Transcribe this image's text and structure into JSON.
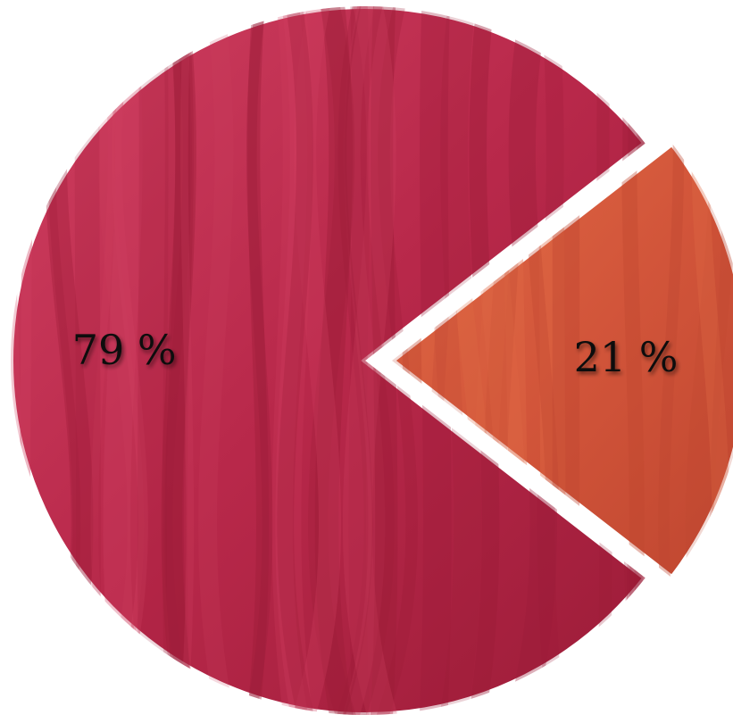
{
  "chart_data": {
    "type": "pie",
    "slices": [
      {
        "label": "79 %",
        "value": 79,
        "color": "#b8284a",
        "highlight": "#cf3f60",
        "shade": "#9c1c38",
        "exploded": false
      },
      {
        "label": "21 %",
        "value": 21,
        "color": "#d2553a",
        "highlight": "#e06a45",
        "shade": "#bf4630",
        "exploded": true
      }
    ],
    "title": "",
    "legend": "none"
  }
}
